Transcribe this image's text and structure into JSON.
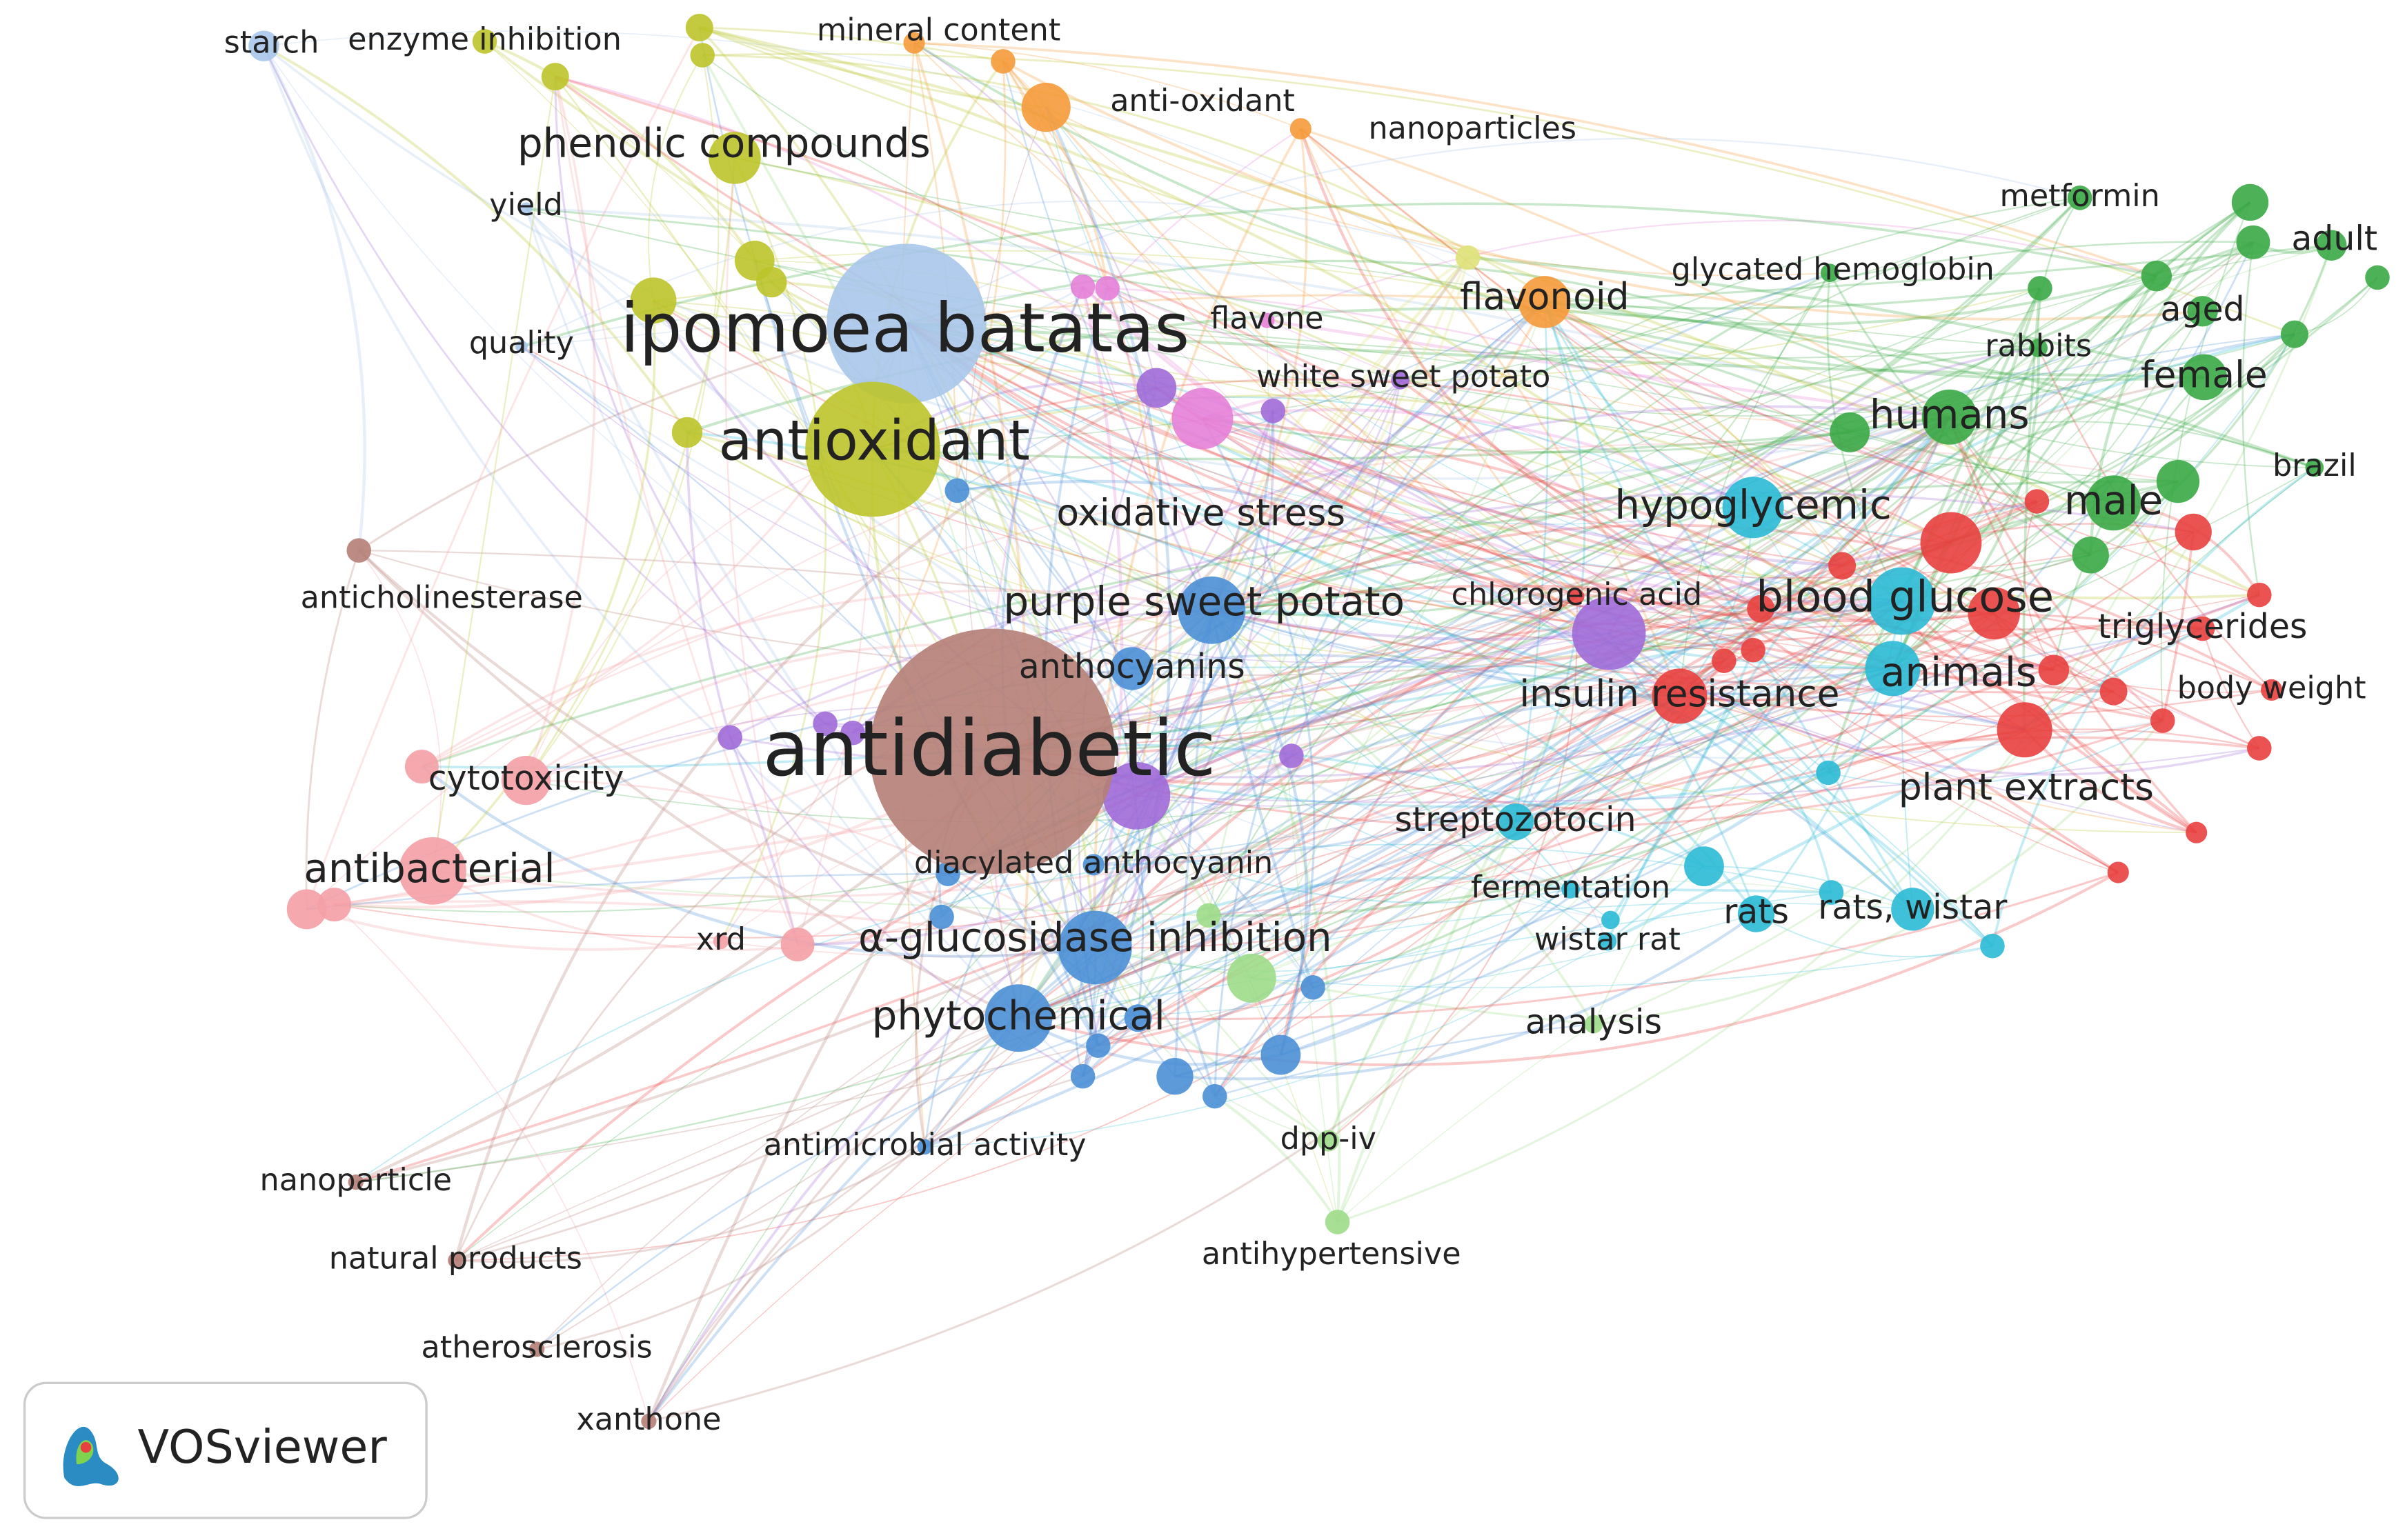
{
  "nodes": [
    {
      "label": "starch",
      "color": "#a9c6ea"
    },
    {
      "label": "enzyme inhibition",
      "color": "#bcc42a"
    },
    {
      "label": "mineral content",
      "color": "#f59a3a"
    },
    {
      "label": "anti-oxidant",
      "color": "#f59a3a"
    },
    {
      "label": "nanoparticles",
      "color": "#f59a3a"
    },
    {
      "label": "phenolic compounds",
      "color": "#bcc42a"
    },
    {
      "label": "yield",
      "color": "#a9c6ea"
    },
    {
      "label": "metformin",
      "color": "#3aa845"
    },
    {
      "label": "adult",
      "color": "#3aa845"
    },
    {
      "label": "glycated hemoglobin",
      "color": "#3aa845"
    },
    {
      "label": "flavonoid",
      "color": "#f59a3a"
    },
    {
      "label": "aged",
      "color": "#3aa845"
    },
    {
      "label": "flavone",
      "color": "#e680d8"
    },
    {
      "label": "ipomoea batatas",
      "color": "#a9c6ea"
    },
    {
      "label": "rabbits",
      "color": "#3aa845"
    },
    {
      "label": "quality",
      "color": "#a9c6ea"
    },
    {
      "label": "female",
      "color": "#3aa845"
    },
    {
      "label": "white sweet potato",
      "color": "#a06ad8"
    },
    {
      "label": "humans",
      "color": "#3aa845"
    },
    {
      "label": "antioxidant",
      "color": "#bcc42a"
    },
    {
      "label": "brazil",
      "color": "#3aa845"
    },
    {
      "label": "male",
      "color": "#3aa845"
    },
    {
      "label": "hypoglycemic",
      "color": "#2bbad6"
    },
    {
      "label": "oxidative stress",
      "color": "#e680d8"
    },
    {
      "label": "anticholinesterase",
      "color": "#b57f77"
    },
    {
      "label": "chlorogenic acid",
      "color": "#e8403e"
    },
    {
      "label": "blood glucose",
      "color": "#2bbad6"
    },
    {
      "label": "purple sweet potato",
      "color": "#4a8fd6"
    },
    {
      "label": "triglycerides",
      "color": "#e8403e"
    },
    {
      "label": "anthocyanins",
      "color": "#4a8fd6"
    },
    {
      "label": "animals",
      "color": "#2bbad6"
    },
    {
      "label": "insulin resistance",
      "color": "#e8403e"
    },
    {
      "label": "body weight",
      "color": "#e8403e"
    },
    {
      "label": "antidiabetic",
      "color": "#b57f77"
    },
    {
      "label": "cytotoxicity",
      "color": "#f4a0a6"
    },
    {
      "label": "plant extracts",
      "color": "#e8403e"
    },
    {
      "label": "streptozotocin",
      "color": "#2bbad6"
    },
    {
      "label": "antibacterial",
      "color": "#f4a0a6"
    },
    {
      "label": "diacylated anthocyanin",
      "color": "#4a8fd6"
    },
    {
      "label": "fermentation",
      "color": "#2bbad6"
    },
    {
      "label": "rats",
      "color": "#2bbad6"
    },
    {
      "label": "rats, wistar",
      "color": "#2bbad6"
    },
    {
      "label": "xrd",
      "color": "#f4a0a6"
    },
    {
      "label": "α-glucosidase inhibition",
      "color": "#4a8fd6"
    },
    {
      "label": "wistar rat",
      "color": "#2bbad6"
    },
    {
      "label": "phytochemical",
      "color": "#4a8fd6"
    },
    {
      "label": "analysis",
      "color": "#9ddc8a"
    },
    {
      "label": "antimicrobial activity",
      "color": "#4a8fd6"
    },
    {
      "label": "dpp-iv",
      "color": "#9ddc8a"
    },
    {
      "label": "nanoparticle",
      "color": "#b57f77"
    },
    {
      "label": "antihypertensive",
      "color": "#9ddc8a"
    },
    {
      "label": "natural products",
      "color": "#b57f77"
    },
    {
      "label": "atherosclerosis",
      "color": "#b57f77"
    },
    {
      "label": "xanthone",
      "color": "#b57f77"
    }
  ],
  "logo": {
    "text": "VOSviewer"
  }
}
